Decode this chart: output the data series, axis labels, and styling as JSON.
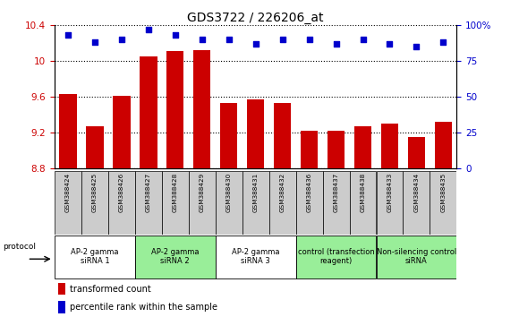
{
  "title": "GDS3722 / 226206_at",
  "samples": [
    "GSM388424",
    "GSM388425",
    "GSM388426",
    "GSM388427",
    "GSM388428",
    "GSM388429",
    "GSM388430",
    "GSM388431",
    "GSM388432",
    "GSM388436",
    "GSM388437",
    "GSM388438",
    "GSM388433",
    "GSM388434",
    "GSM388435"
  ],
  "transformed_count": [
    9.63,
    9.27,
    9.61,
    10.05,
    10.11,
    10.12,
    9.53,
    9.57,
    9.53,
    9.22,
    9.22,
    9.27,
    9.3,
    9.15,
    9.32
  ],
  "percentile_rank": [
    93,
    88,
    90,
    97,
    93,
    90,
    90,
    87,
    90,
    90,
    87,
    90,
    87,
    85,
    88
  ],
  "ylim_left": [
    8.8,
    10.4
  ],
  "ylim_right": [
    0,
    100
  ],
  "yticks_left": [
    8.8,
    9.2,
    9.6,
    10.0,
    10.4
  ],
  "yticks_right": [
    0,
    25,
    50,
    75,
    100
  ],
  "ytick_labels_left": [
    "8.8",
    "9.2",
    "9.6",
    "10",
    "10.4"
  ],
  "ytick_labels_right": [
    "0",
    "25",
    "50",
    "75",
    "100%"
  ],
  "bar_color": "#cc0000",
  "dot_color": "#0000cc",
  "groups": [
    {
      "label": "AP-2 gamma\nsiRNA 1",
      "start": 0,
      "end": 3,
      "color": "#ffffff"
    },
    {
      "label": "AP-2 gamma\nsiRNA 2",
      "start": 3,
      "end": 6,
      "color": "#99ee99"
    },
    {
      "label": "AP-2 gamma\nsiRNA 3",
      "start": 6,
      "end": 9,
      "color": "#ffffff"
    },
    {
      "label": "control (transfection\nreagent)",
      "start": 9,
      "end": 12,
      "color": "#99ee99"
    },
    {
      "label": "Non-silencing control\nsiRNA",
      "start": 12,
      "end": 15,
      "color": "#99ee99"
    }
  ],
  "protocol_label": "protocol",
  "legend_bar_label": "transformed count",
  "legend_dot_label": "percentile rank within the sample",
  "grid_color": "black",
  "tick_label_color_left": "#cc0000",
  "tick_label_color_right": "#0000cc",
  "sample_box_color": "#cccccc",
  "figure_bg": "#ffffff"
}
